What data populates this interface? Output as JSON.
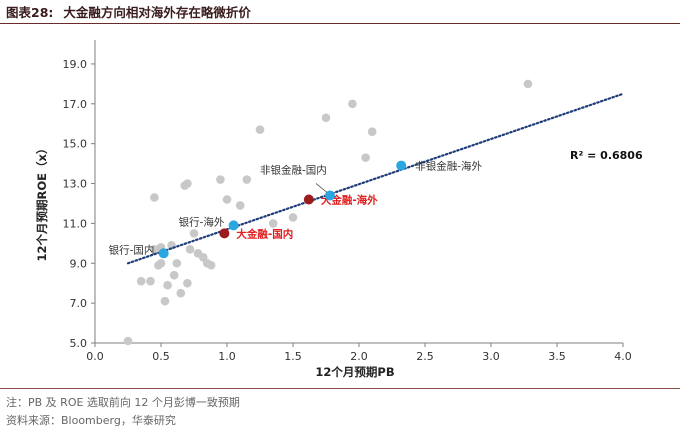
{
  "figure": {
    "label": "图表28:",
    "title": "大金融方向相对海外存在略微折价"
  },
  "chart_data": {
    "type": "scatter",
    "xlabel": "12个月预期PB",
    "ylabel": "12个月预期ROE（x）",
    "xlim": [
      0.0,
      4.0
    ],
    "ylim": [
      5.0,
      20.0
    ],
    "xticks": [
      "0.0",
      "0.5",
      "1.0",
      "1.5",
      "2.0",
      "2.5",
      "3.0",
      "3.5",
      "4.0"
    ],
    "yticks": [
      "5.0",
      "7.0",
      "9.0",
      "11.0",
      "13.0",
      "15.0",
      "17.0",
      "19.0"
    ],
    "grid": false,
    "r_squared_label": "R² = 0.6806",
    "trendline": {
      "x": [
        0.25,
        4.0
      ],
      "y": [
        9.0,
        17.5
      ]
    },
    "background_points": [
      [
        0.25,
        5.1
      ],
      [
        0.35,
        8.1
      ],
      [
        0.42,
        8.1
      ],
      [
        0.45,
        9.7
      ],
      [
        0.48,
        8.9
      ],
      [
        0.5,
        9.8
      ],
      [
        0.5,
        9.0
      ],
      [
        0.52,
        9.5
      ],
      [
        0.53,
        7.1
      ],
      [
        0.55,
        7.9
      ],
      [
        0.58,
        9.9
      ],
      [
        0.6,
        8.4
      ],
      [
        0.62,
        9.0
      ],
      [
        0.65,
        7.5
      ],
      [
        0.68,
        12.9
      ],
      [
        0.7,
        13.0
      ],
      [
        0.72,
        9.7
      ],
      [
        0.7,
        8.0
      ],
      [
        0.75,
        10.5
      ],
      [
        0.78,
        9.5
      ],
      [
        0.82,
        9.3
      ],
      [
        0.85,
        9.0
      ],
      [
        0.88,
        8.9
      ],
      [
        0.95,
        13.2
      ],
      [
        1.0,
        12.2
      ],
      [
        1.1,
        11.9
      ],
      [
        1.15,
        13.2
      ],
      [
        1.25,
        15.7
      ],
      [
        1.35,
        11.0
      ],
      [
        1.5,
        11.3
      ],
      [
        1.75,
        16.3
      ],
      [
        1.95,
        17.0
      ],
      [
        2.05,
        14.3
      ],
      [
        2.1,
        15.6
      ],
      [
        3.28,
        18.0
      ],
      [
        0.45,
        12.3
      ]
    ],
    "highlighted_points": [
      {
        "label": "银行-国内",
        "x": 0.52,
        "y": 9.5,
        "color": "#2aa7e0",
        "label_color": "#333333"
      },
      {
        "label": "银行-海外",
        "x": 1.05,
        "y": 10.9,
        "color": "#2aa7e0",
        "label_color": "#333333"
      },
      {
        "label": "大金融-国内",
        "x": 0.98,
        "y": 10.5,
        "color": "#9b1c1c",
        "label_color": "#e02020"
      },
      {
        "label": "大金融-海外",
        "x": 1.62,
        "y": 12.2,
        "color": "#9b1c1c",
        "label_color": "#e02020"
      },
      {
        "label": "非银金融-国内",
        "x": 1.78,
        "y": 12.4,
        "color": "#2aa7e0",
        "label_color": "#333333"
      },
      {
        "label": "非银金融-海外",
        "x": 2.32,
        "y": 13.9,
        "color": "#2aa7e0",
        "label_color": "#333333"
      }
    ],
    "colors": {
      "background_point": "#c8c8c8",
      "trendline": "#1f3d7a",
      "axis": "#7f7f7f"
    }
  },
  "footnotes": {
    "note": "注：PB 及 ROE 选取前向 12 个月彭博一致预期",
    "source": "资料来源：Bloomberg，华泰研究"
  }
}
